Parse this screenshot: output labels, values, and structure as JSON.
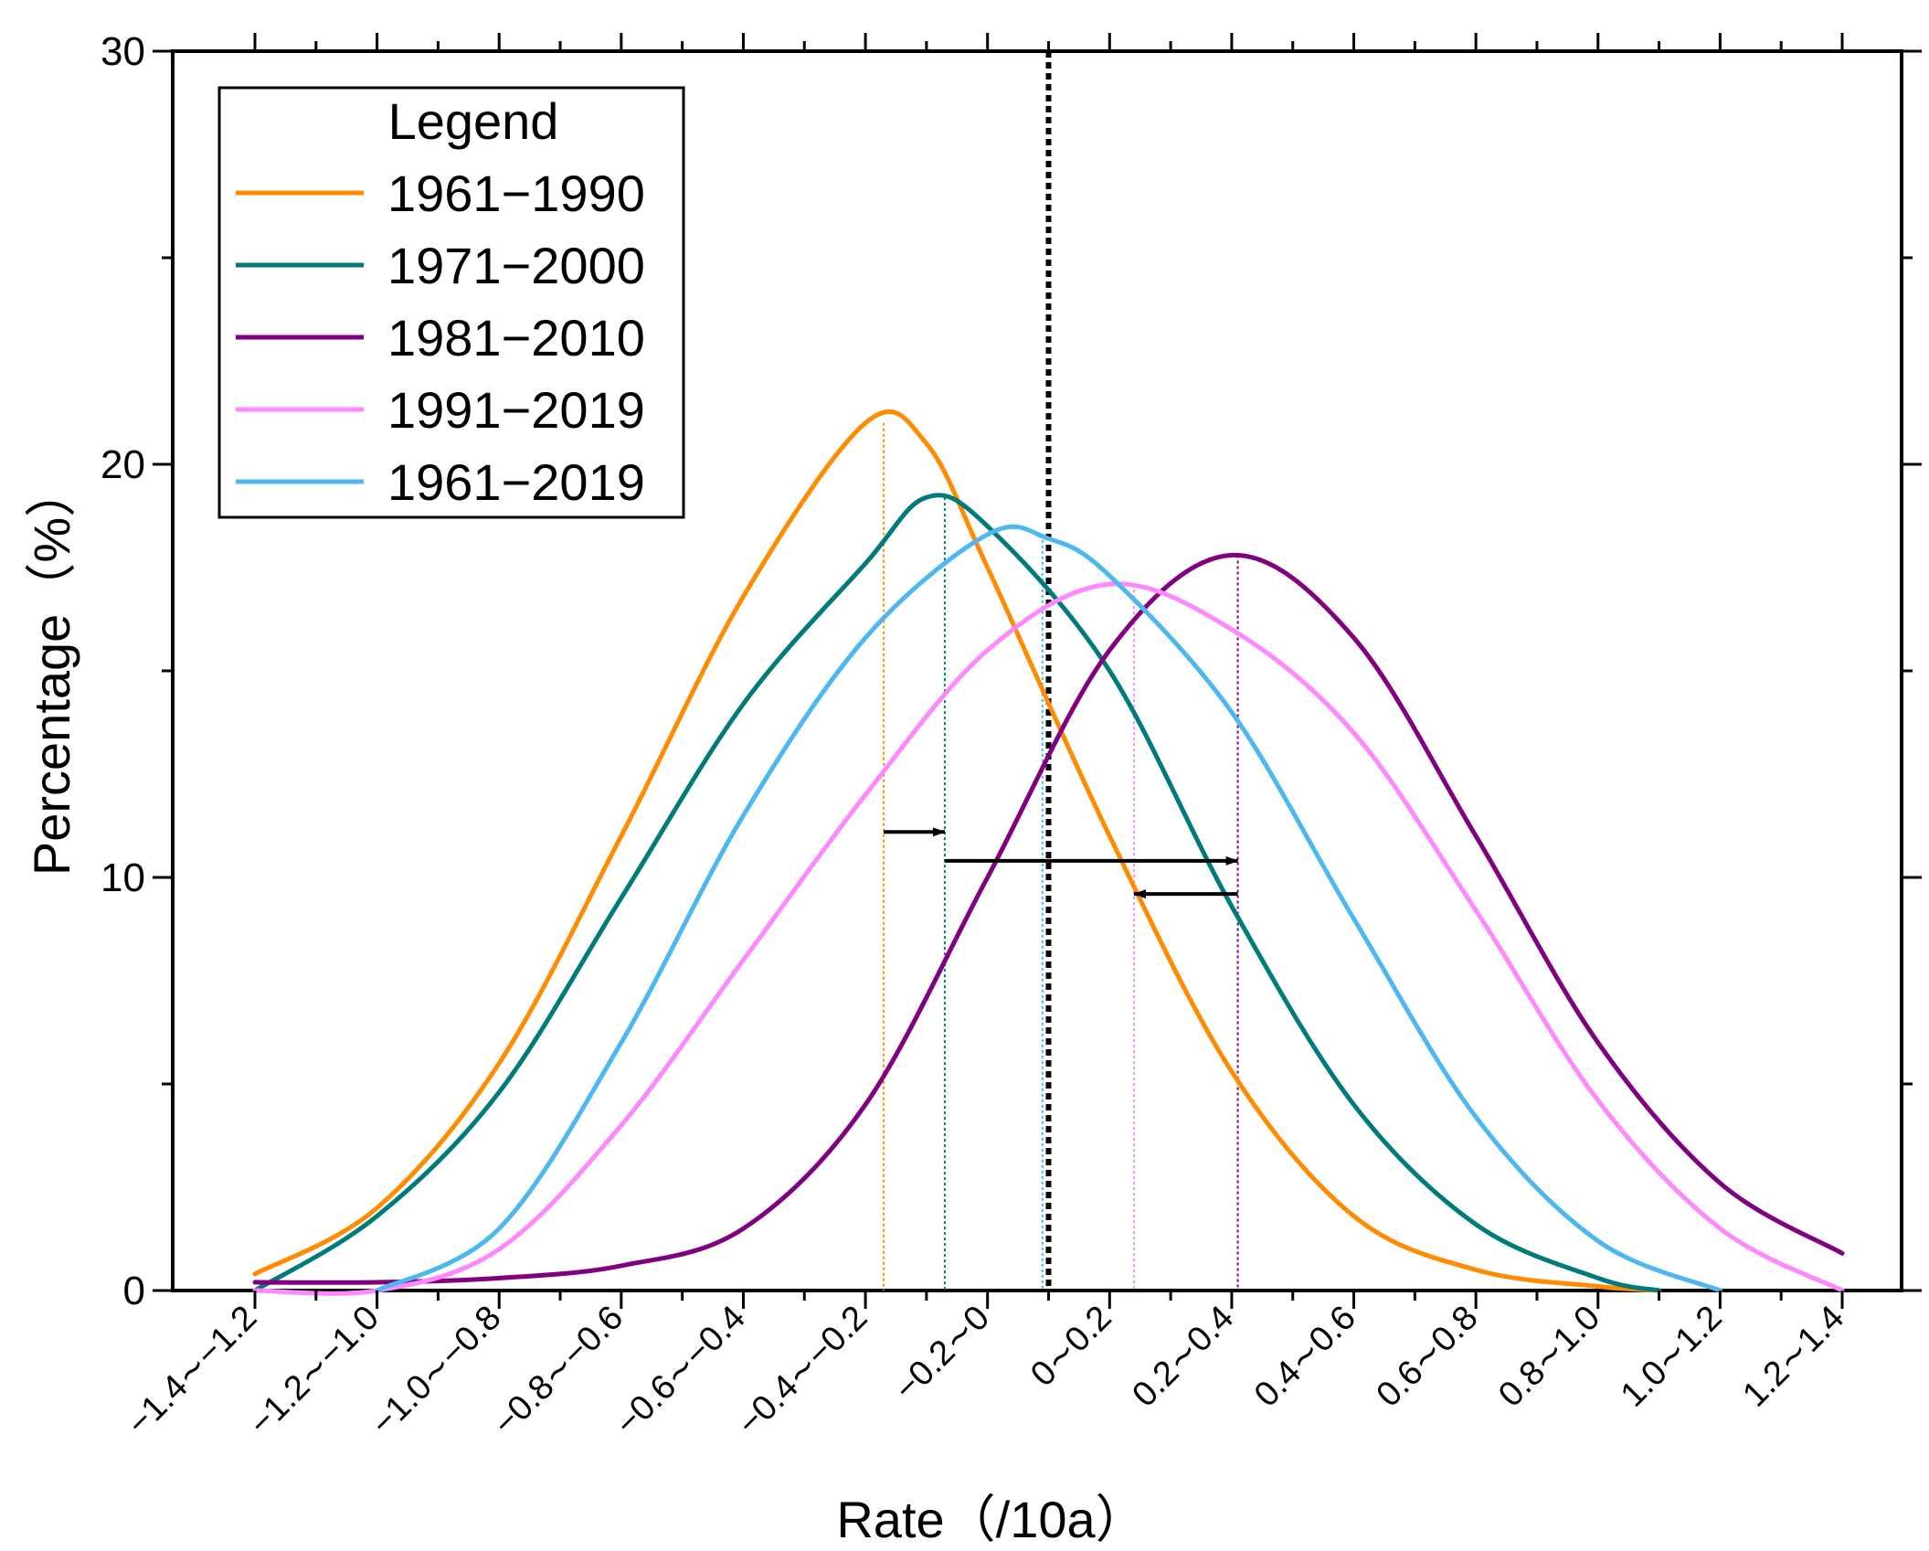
{
  "chart_data": {
    "type": "line",
    "title": "",
    "xlabel": "Rate（/10a）",
    "ylabel": "Percentage（%）",
    "xlim": [
      -1.4,
      1.4
    ],
    "ylim": [
      0,
      30
    ],
    "y_ticks": [
      0,
      10,
      20,
      30
    ],
    "x_tick_labels": [
      "−1.4∼−1.2",
      "−1.2∼−1.0",
      "−1.0∼−0.8",
      "−0.8∼−0.6",
      "−0.6∼−0.4",
      "−0.4∼−0.2",
      "−0.2∼0",
      "0∼0.2",
      "0.2∼0.4",
      "0.4∼0.6",
      "0.6∼0.8",
      "0.8∼1.0",
      "1.0∼1.2",
      "1.2∼1.4"
    ],
    "x_tick_values": [
      -1.2,
      -1.0,
      -0.8,
      -0.6,
      -0.4,
      -0.2,
      0.0,
      0.2,
      0.4,
      0.6,
      0.8,
      1.0,
      1.2,
      1.4
    ],
    "legend": {
      "title": "Legend",
      "position": "top-left"
    },
    "series": [
      {
        "name": "1961−1990",
        "color": "#FF8C00",
        "x": [
          -1.2,
          -1.0,
          -0.8,
          -0.6,
          -0.4,
          -0.2,
          -0.1,
          0.0,
          0.2,
          0.4,
          0.6,
          0.8,
          1.0,
          1.1
        ],
        "y": [
          0.4,
          2.0,
          5.5,
          11.0,
          16.8,
          21.0,
          20.5,
          17.5,
          11.0,
          5.3,
          1.8,
          0.5,
          0.1,
          0.0
        ]
      },
      {
        "name": "1971−2000",
        "color": "#007B7B",
        "x": [
          -1.2,
          -1.0,
          -0.8,
          -0.6,
          -0.4,
          -0.2,
          -0.1,
          0.0,
          0.2,
          0.4,
          0.6,
          0.8,
          1.0,
          1.1
        ],
        "y": [
          0.0,
          1.8,
          4.8,
          9.5,
          14.2,
          17.6,
          19.2,
          18.5,
          15.0,
          9.3,
          4.5,
          1.6,
          0.3,
          0.0
        ]
      },
      {
        "name": "1981−2010",
        "color": "#800080",
        "x": [
          -1.2,
          -1.0,
          -0.8,
          -0.6,
          -0.4,
          -0.2,
          0.0,
          0.2,
          0.4,
          0.6,
          0.8,
          1.0,
          1.2,
          1.4
        ],
        "y": [
          0.2,
          0.2,
          0.3,
          0.6,
          1.5,
          4.5,
          10.0,
          15.5,
          17.8,
          15.8,
          11.0,
          6.0,
          2.6,
          0.9
        ]
      },
      {
        "name": "1991−2019",
        "color": "#FF88FF",
        "x": [
          -1.2,
          -1.0,
          -0.8,
          -0.6,
          -0.4,
          -0.2,
          0.0,
          0.2,
          0.4,
          0.6,
          0.8,
          1.0,
          1.2,
          1.4
        ],
        "y": [
          0.0,
          0.0,
          1.0,
          4.0,
          8.0,
          12.0,
          15.5,
          17.1,
          16.0,
          13.5,
          9.2,
          4.6,
          1.5,
          0.0
        ]
      },
      {
        "name": "1961−2019",
        "color": "#4DB8F0",
        "x": [
          -1.0,
          -0.8,
          -0.6,
          -0.4,
          -0.2,
          0.0,
          0.1,
          0.2,
          0.4,
          0.6,
          0.8,
          1.0,
          1.2
        ],
        "y": [
          0.0,
          1.5,
          6.0,
          11.5,
          15.8,
          18.3,
          18.2,
          17.3,
          14.0,
          9.0,
          4.2,
          1.2,
          0.0
        ]
      }
    ],
    "reference_line": {
      "x": 0.1,
      "style": "dotted",
      "color": "#000000"
    },
    "peak_markers": [
      {
        "series": "1961−1990",
        "x": -0.17
      },
      {
        "series": "1971−2000",
        "x": -0.07
      },
      {
        "series": "1961−2019",
        "x": 0.09
      },
      {
        "series": "1991−2019",
        "x": 0.24
      },
      {
        "series": "1981−2010",
        "x": 0.41
      }
    ],
    "arrows": [
      {
        "from_x": -0.17,
        "to_x": -0.07,
        "y": 11.1
      },
      {
        "from_x": -0.07,
        "to_x": 0.41,
        "y": 10.4
      },
      {
        "from_x": 0.41,
        "to_x": 0.24,
        "y": 9.6
      }
    ]
  }
}
